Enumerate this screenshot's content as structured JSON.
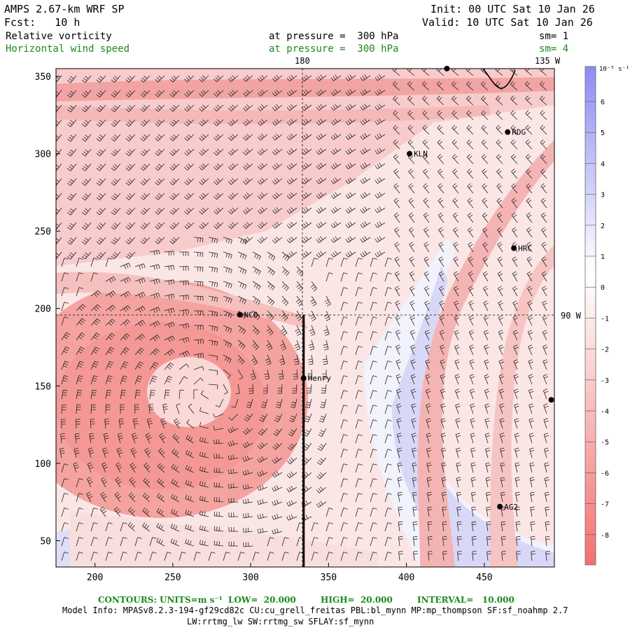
{
  "header": {
    "model": "AMPS 2.67-km WRF SP",
    "init": "Init: 00 UTC Sat 10 Jan 26",
    "fcst": "Fcst:   10 h",
    "valid": "Valid: 10 UTC Sat 10 Jan 26",
    "field1_name": "Relative vorticity",
    "field1_level": "at pressure =  300 hPa",
    "field1_sm": "sm= 1",
    "field2_name": "Horizontal wind speed",
    "field2_level": "at pressure =  300 hPa",
    "field2_sm": "sm= 4"
  },
  "map": {
    "lon_labels": [
      "180",
      "135 W",
      "90 W"
    ],
    "x_ticks": [
      200,
      250,
      300,
      350,
      400,
      450
    ],
    "y_ticks": [
      50,
      100,
      150,
      200,
      250,
      300,
      350
    ],
    "x_range": [
      175,
      495
    ],
    "y_range": [
      33,
      355
    ],
    "stations": [
      {
        "name": "KLN",
        "x": 402,
        "y": 300
      },
      {
        "name": "RDG",
        "x": 465,
        "y": 314
      },
      {
        "name": "HRC",
        "x": 469,
        "y": 239
      },
      {
        "name": "NCO",
        "x": 293,
        "y": 196
      },
      {
        "name": "Henry",
        "x": 334,
        "y": 155
      },
      {
        "name": "AG2",
        "x": 460,
        "y": 72
      },
      {
        "name": "",
        "x": 426,
        "y": 355
      },
      {
        "name": "",
        "x": 493,
        "y": 141
      }
    ],
    "cross_section": {
      "x": 334,
      "y0": 33,
      "y1": 196
    }
  },
  "colorbar": {
    "unit": "10⁻⁵ s⁻¹",
    "labels": [
      "6",
      "5",
      "4",
      "3",
      "2",
      "1",
      "0",
      "-1",
      "-2",
      "-3",
      "-4",
      "-5",
      "-6",
      "-7",
      "-8"
    ],
    "max_color": "#8c8cf0",
    "min_color": "#f47070"
  },
  "footer": {
    "contours_label": "CONTOURS:",
    "units": "UNITS=m s⁻¹",
    "low": "LOW=  20.000",
    "high": "HIGH=  20.000",
    "interval": "INTERVAL=   10.000",
    "model_info": "Model Info: MPASv8.2.3-194-gf29cd82c CU:cu_grell_freitas PBL:bl_mynn MP:mp_thompson SF:sf_noahmp 2.7",
    "model_info2": "LW:rrtmg_lw SW:rrtmg_sw SFLAY:sf_mynn"
  }
}
